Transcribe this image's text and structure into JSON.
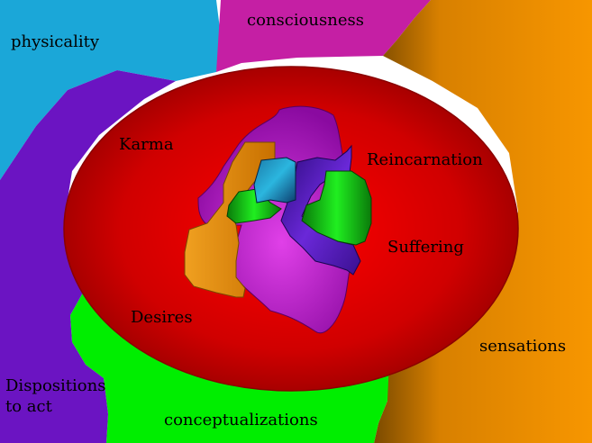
{
  "diagram": {
    "outer_regions": {
      "physicality": "physicality",
      "consciousness": "consciousness",
      "sensations": "sensations",
      "conceptualizations": "conceptualizations",
      "dispositions": "Dispositions to act"
    },
    "inner_labels": {
      "karma": "Karma",
      "reincarnation": "Reincarnation",
      "suffering": "Suffering",
      "desires": "Desires"
    },
    "colors": {
      "physicality": "#1ba7d8",
      "consciousness": "#c51fa4",
      "sensations": "#f39000",
      "conceptualizations": "#00ee00",
      "dispositions": "#6b14c2",
      "wheel_center": "#ff0000",
      "wheel_edge": "#a80000",
      "core_magenta": "#bb10c8",
      "core_orange": "#f39f10",
      "core_green": "#13c313",
      "core_blue": "#1f80a8",
      "core_indigo": "#5618b8"
    }
  }
}
